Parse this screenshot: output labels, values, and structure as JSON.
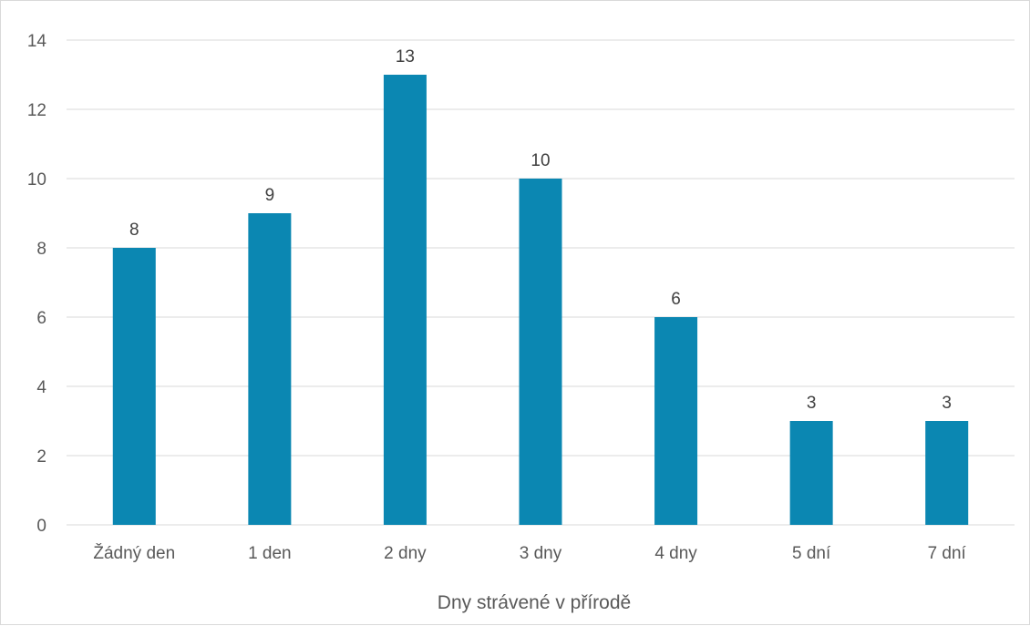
{
  "chart_data": {
    "type": "bar",
    "title": "",
    "xlabel": "Dny strávené v přírodě",
    "ylabel": "",
    "categories": [
      "Žádný den",
      "1 den",
      "2 dny",
      "3 dny",
      "4 dny",
      "5 dní",
      "7 dní"
    ],
    "values": [
      8,
      9,
      13,
      10,
      6,
      3,
      3
    ],
    "ylim": [
      0,
      14
    ],
    "yticks": [
      0,
      2,
      4,
      6,
      8,
      10,
      12,
      14
    ],
    "grid": true,
    "legend": "none",
    "data_labels": true,
    "bar_color": "#0b87b2",
    "gridline_color": "#d9d9d9"
  }
}
